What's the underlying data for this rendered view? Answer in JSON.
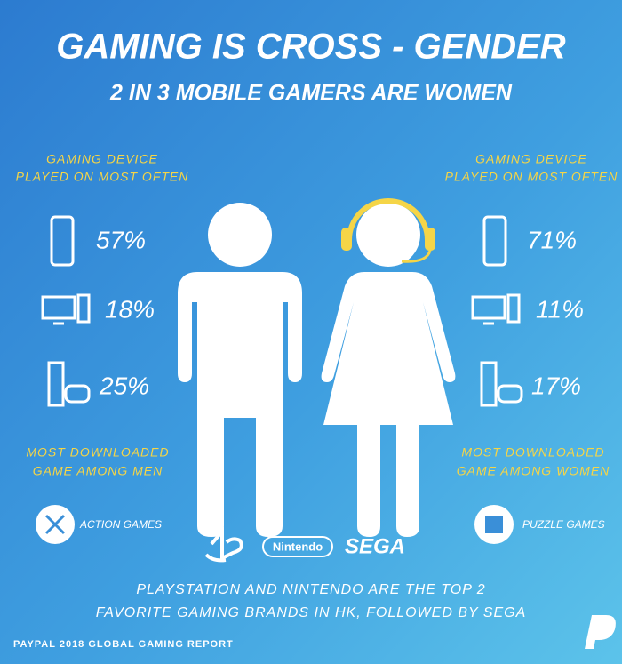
{
  "title": "GAMING IS CROSS - GENDER",
  "subtitle": "2 IN 3 MOBILE GAMERS ARE WOMEN",
  "men": {
    "device_heading": [
      "GAMING DEVICE",
      "PLAYED ON MOST OFTEN"
    ],
    "devices": [
      "57%",
      "18%",
      "25%"
    ],
    "download_heading": [
      "MOST DOWNLOADED",
      "GAME AMONG MEN"
    ],
    "game": "ACTION GAMES"
  },
  "women": {
    "device_heading": [
      "GAMING DEVICE",
      "PLAYED ON MOST OFTEN"
    ],
    "devices": [
      "71%",
      "11%",
      "17%"
    ],
    "download_heading": [
      "MOST DOWNLOADED",
      "GAME AMONG WOMEN"
    ],
    "game": "PUZZLE GAMES"
  },
  "brands": [
    "Nintendo",
    "SEGA"
  ],
  "footer": [
    "PLAYSTATION AND NINTENDO ARE THE TOP 2",
    "FAVORITE GAMING BRANDS IN HK, FOLLOWED BY SEGA"
  ],
  "source": "PAYPAL 2018 GLOBAL GAMING REPORT"
}
